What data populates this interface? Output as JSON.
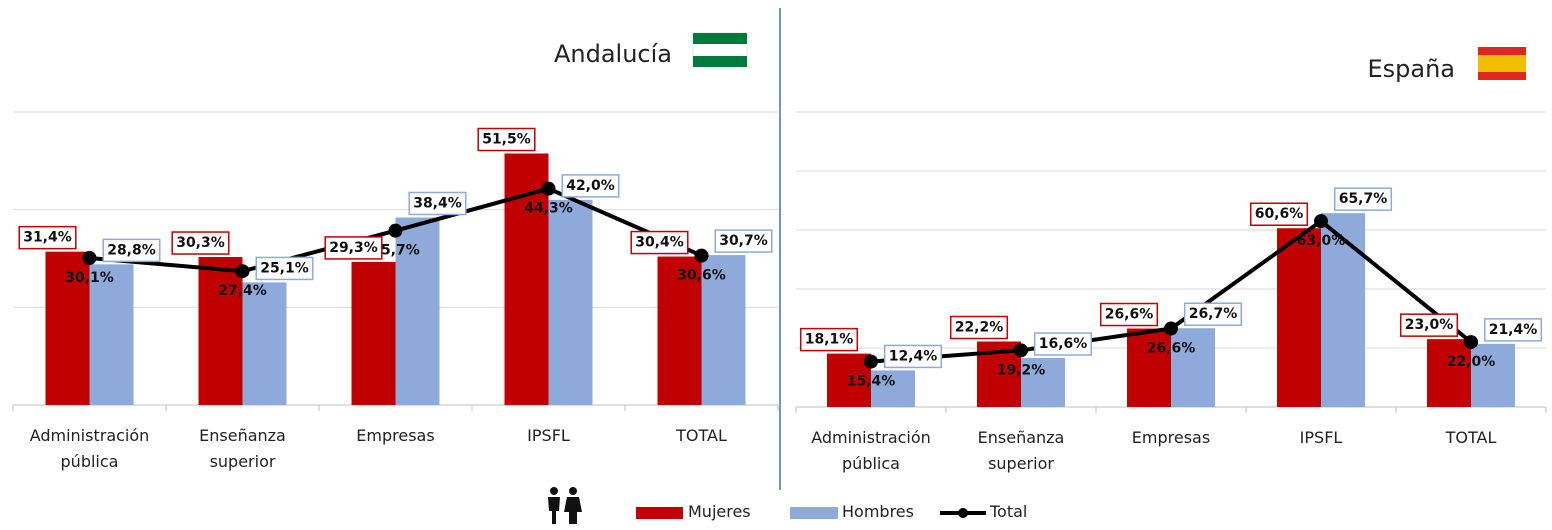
{
  "chart_data": [
    {
      "type": "bar",
      "title": "Andalucía",
      "categories": [
        "Administración pública",
        "Enseñanza superior",
        "Empresas",
        "IPSFL",
        "TOTAL"
      ],
      "series": [
        {
          "name": "Mujeres",
          "color": "#c00000",
          "values": [
            31.4,
            30.3,
            29.3,
            51.5,
            30.4
          ],
          "value_labels": [
            "31,4%",
            "30,3%",
            "29,3%",
            "51,5%",
            "30,4%"
          ]
        },
        {
          "name": "Hombres",
          "color": "#8eaadb",
          "values": [
            28.8,
            25.1,
            38.4,
            42.0,
            30.7
          ],
          "value_labels": [
            "28,8%",
            "25,1%",
            "38,4%",
            "42,0%",
            "30,7%"
          ]
        },
        {
          "name": "Total",
          "color": "#000000",
          "type": "line",
          "values": [
            30.1,
            27.4,
            35.7,
            44.3,
            30.6
          ],
          "value_labels": [
            "30,1%",
            "27,4%",
            "35,7%",
            "44,3%",
            "30,6%"
          ]
        }
      ],
      "ylim": [
        0,
        60
      ],
      "yticks": [
        0,
        20,
        40,
        60
      ],
      "grid": true
    },
    {
      "type": "bar",
      "title": "España",
      "categories": [
        "Administración pública",
        "Enseñanza superior",
        "Empresas",
        "IPSFL",
        "TOTAL"
      ],
      "series": [
        {
          "name": "Mujeres",
          "color": "#c00000",
          "values": [
            18.1,
            22.2,
            26.6,
            60.6,
            23.0
          ],
          "value_labels": [
            "18,1%",
            "22,2%",
            "26,6%",
            "60,6%",
            "23,0%"
          ]
        },
        {
          "name": "Hombres",
          "color": "#8eaadb",
          "values": [
            12.4,
            16.6,
            26.7,
            65.7,
            21.4
          ],
          "value_labels": [
            "12,4%",
            "16,6%",
            "26,7%",
            "65,7%",
            "21,4%"
          ]
        },
        {
          "name": "Total",
          "color": "#000000",
          "type": "line",
          "values": [
            15.4,
            19.2,
            26.6,
            63.0,
            22.0
          ],
          "value_labels": [
            "15,4%",
            "19,2%",
            "26,6%",
            "63,0%",
            "22,0%"
          ]
        }
      ],
      "ylim": [
        0,
        100
      ],
      "yticks": [
        0,
        20,
        40,
        60,
        80,
        100
      ],
      "grid": true
    }
  ]
}
